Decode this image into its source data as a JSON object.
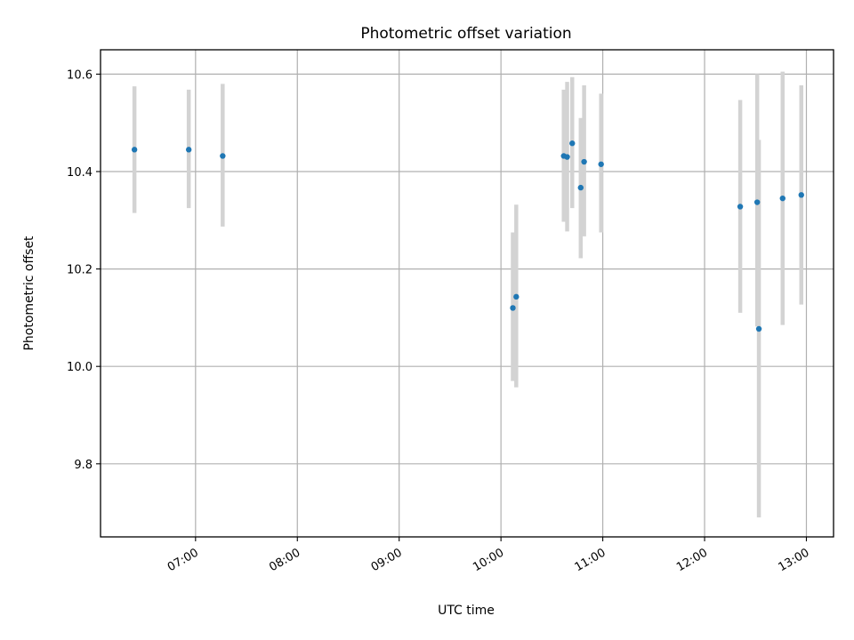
{
  "chart_data": {
    "type": "scatter",
    "title": "Photometric offset variation",
    "xlabel": "UTC time",
    "ylabel": "Photometric offset",
    "x_unit": "UTC time of day (HH:MM)",
    "xlim": [
      "06:04",
      "13:16"
    ],
    "ylim": [
      9.65,
      10.65
    ],
    "xticks": [
      "07:00",
      "08:00",
      "09:00",
      "10:00",
      "11:00",
      "12:00",
      "13:00"
    ],
    "yticks": [
      9.8,
      10.0,
      10.2,
      10.4,
      10.6
    ],
    "ytick_labels": [
      "9.8",
      "10.0",
      "10.2",
      "10.4",
      "10.6"
    ],
    "grid": true,
    "legend": "none",
    "colors": {
      "marker": "#1f77b4",
      "errorbar": "#d3d3d3",
      "grid": "#b0b0b0"
    },
    "series": [
      {
        "points": [
          {
            "x": "06:24",
            "y": 10.445,
            "ylo": 10.315,
            "yhi": 10.575
          },
          {
            "x": "06:56",
            "y": 10.445,
            "ylo": 10.325,
            "yhi": 10.568
          },
          {
            "x": "07:16",
            "y": 10.432,
            "ylo": 10.287,
            "yhi": 10.58
          },
          {
            "x": "10:07",
            "y": 10.12,
            "ylo": 9.97,
            "yhi": 10.275
          },
          {
            "x": "10:09",
            "y": 10.143,
            "ylo": 9.957,
            "yhi": 10.332
          },
          {
            "x": "10:37",
            "y": 10.432,
            "ylo": 10.297,
            "yhi": 10.568
          },
          {
            "x": "10:39",
            "y": 10.43,
            "ylo": 10.277,
            "yhi": 10.584
          },
          {
            "x": "10:42",
            "y": 10.458,
            "ylo": 10.325,
            "yhi": 10.594
          },
          {
            "x": "10:47",
            "y": 10.367,
            "ylo": 10.222,
            "yhi": 10.51
          },
          {
            "x": "10:49",
            "y": 10.42,
            "ylo": 10.267,
            "yhi": 10.577
          },
          {
            "x": "10:59",
            "y": 10.415,
            "ylo": 10.275,
            "yhi": 10.56
          },
          {
            "x": "12:21",
            "y": 10.328,
            "ylo": 10.11,
            "yhi": 10.547
          },
          {
            "x": "12:31",
            "y": 10.337,
            "ylo": 10.082,
            "yhi": 10.6
          },
          {
            "x": "12:32",
            "y": 10.077,
            "ylo": 9.69,
            "yhi": 10.465
          },
          {
            "x": "12:46",
            "y": 10.345,
            "ylo": 10.085,
            "yhi": 10.605
          },
          {
            "x": "12:57",
            "y": 10.352,
            "ylo": 10.127,
            "yhi": 10.577
          }
        ]
      }
    ]
  }
}
